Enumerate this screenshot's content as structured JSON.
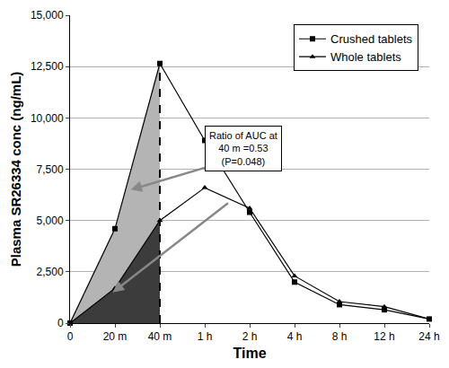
{
  "chart_data": {
    "type": "line",
    "x_label": "Time",
    "y_label": "Plasma SR26334 conc (ng/mL)",
    "categories": [
      "0",
      "20 m",
      "40 m",
      "1 h",
      "2 h",
      "4 h",
      "8 h",
      "12 h",
      "24 h"
    ],
    "series": [
      {
        "name": "Crushed tablets",
        "color": "#000000",
        "marker": "square",
        "values": [
          0,
          4600,
          12650,
          8900,
          5400,
          2000,
          900,
          650,
          200
        ]
      },
      {
        "name": "Whole tablets",
        "color": "#000000",
        "marker": "triangle-up",
        "values": [
          0,
          1700,
          5000,
          6600,
          5600,
          2300,
          1050,
          800,
          200
        ]
      }
    ],
    "ylim": [
      0,
      15000
    ],
    "yticks": [
      0,
      {
        "value": 2500,
        "label": "2,500"
      },
      {
        "value": 5000,
        "label": "5,000"
      },
      {
        "value": 7500,
        "label": "7,500"
      },
      {
        "value": 10000,
        "label": "10,000"
      },
      {
        "value": 12500,
        "label": "12,500"
      },
      {
        "value": 15000,
        "label": "15,000"
      }
    ],
    "grid": true,
    "legend": "top-right",
    "annotations": [
      {
        "x": "40 m",
        "text": [
          "Ratio of AUC at",
          "40 m =0.53",
          "(P=0.048)"
        ]
      }
    ]
  }
}
